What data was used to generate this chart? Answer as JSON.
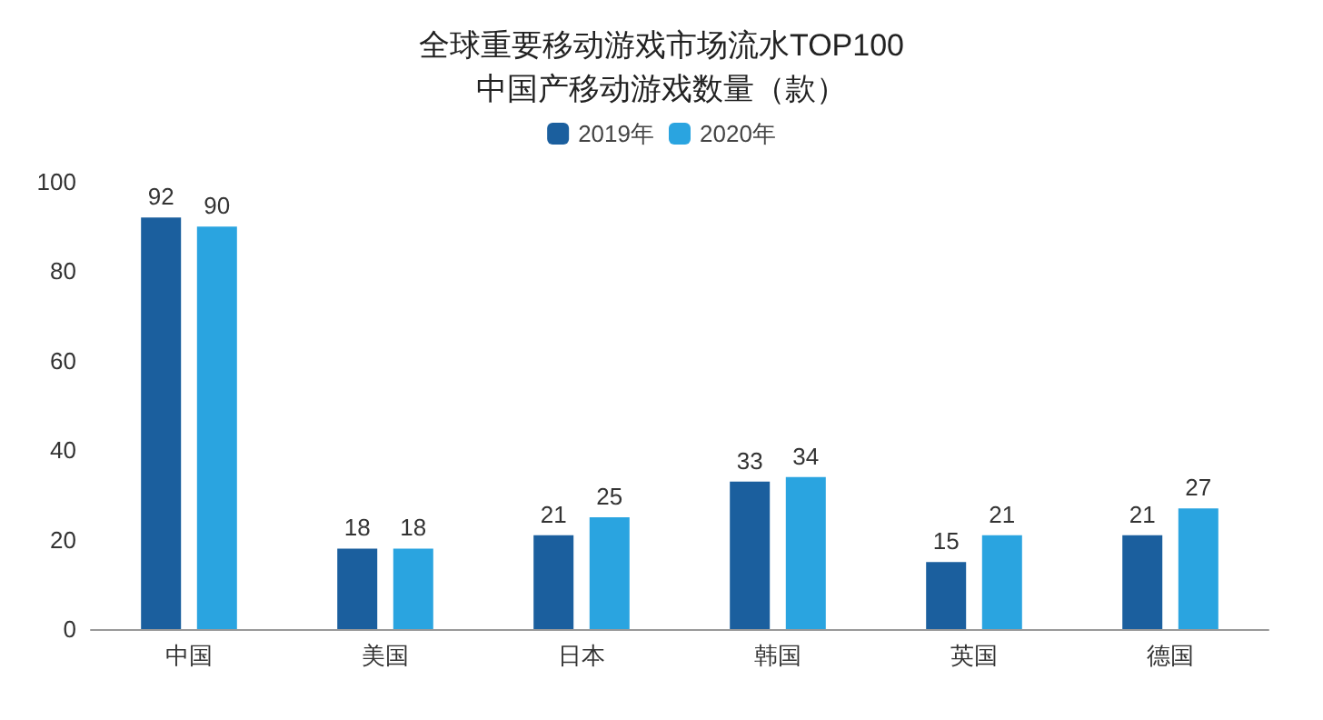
{
  "chart_data": {
    "type": "bar",
    "title": "全球重要移动游戏市场流水TOP100中国产移动游戏数量（款）",
    "categories": [
      "中国",
      "美国",
      "日本",
      "韩国",
      "英国",
      "德国"
    ],
    "series": [
      {
        "name": "2019年",
        "color": "#1b5f9e",
        "values": [
          92,
          18,
          21,
          33,
          15,
          21
        ]
      },
      {
        "name": "2020年",
        "color": "#2aa4e0",
        "values": [
          90,
          18,
          25,
          34,
          21,
          27
        ]
      }
    ],
    "ylim": [
      0,
      100
    ],
    "yticks": [
      0,
      20,
      40,
      60,
      80,
      100
    ],
    "grid": false,
    "legend": "top",
    "data_labels": true
  }
}
